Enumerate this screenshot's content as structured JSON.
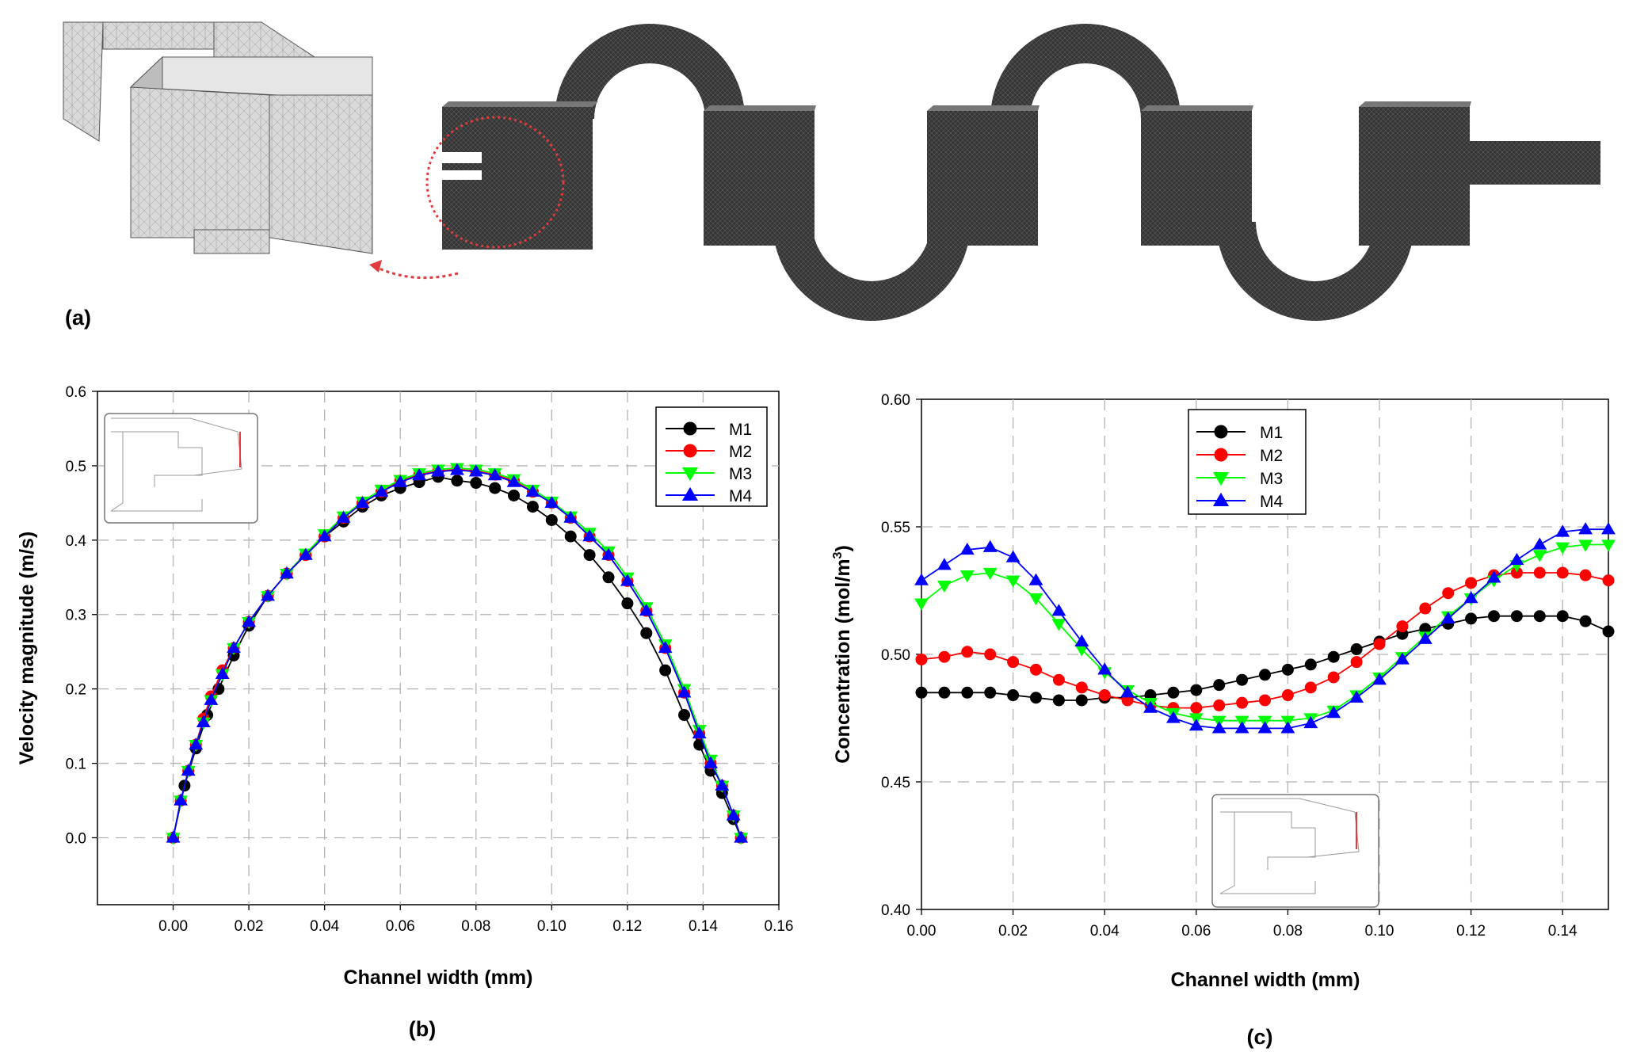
{
  "panels": {
    "a": "(a)",
    "b": "(b)",
    "c": "(c)"
  },
  "colors": {
    "M1": "#000000",
    "M2": "#ff0000",
    "M3": "#00ff00",
    "M4": "#0000ff",
    "grid": "#b4b4b4",
    "mesh_dark": "#3a3a3a",
    "mesh_light": "#d4d4d4",
    "highlight": "#e23b3b"
  },
  "chart_data": [
    {
      "id": "b",
      "type": "line",
      "xlabel": "Channel width (mm)",
      "ylabel": "Velocity magnitude (m/s)",
      "xlim": [
        -0.02,
        0.16
      ],
      "ylim": [
        -0.09,
        0.6
      ],
      "xticks": [
        0.0,
        0.02,
        0.04,
        0.06,
        0.08,
        0.1,
        0.12,
        0.14,
        0.16
      ],
      "xtick_labels": [
        "0.00",
        "0.02",
        "0.04",
        "0.06",
        "0.08",
        "0.10",
        "0.12",
        "0.14",
        "0.16"
      ],
      "yticks": [
        0.0,
        0.1,
        0.2,
        0.3,
        0.4,
        0.5,
        0.6
      ],
      "ytick_labels": [
        "0.0",
        "0.1",
        "0.2",
        "0.3",
        "0.4",
        "0.5",
        "0.6"
      ],
      "grid": true,
      "legend_position": "top-right",
      "series": [
        {
          "name": "M1",
          "marker": "circle",
          "x": [
            0.0,
            0.003,
            0.006,
            0.009,
            0.012,
            0.016,
            0.02,
            0.025,
            0.03,
            0.035,
            0.04,
            0.045,
            0.05,
            0.055,
            0.06,
            0.065,
            0.07,
            0.075,
            0.08,
            0.085,
            0.09,
            0.095,
            0.1,
            0.105,
            0.11,
            0.115,
            0.12,
            0.125,
            0.13,
            0.135,
            0.139,
            0.142,
            0.145,
            0.148,
            0.15
          ],
          "y": [
            0.0,
            0.07,
            0.12,
            0.165,
            0.2,
            0.245,
            0.285,
            0.325,
            0.355,
            0.38,
            0.405,
            0.425,
            0.445,
            0.46,
            0.47,
            0.478,
            0.485,
            0.48,
            0.477,
            0.47,
            0.46,
            0.445,
            0.427,
            0.405,
            0.38,
            0.35,
            0.315,
            0.275,
            0.225,
            0.165,
            0.125,
            0.09,
            0.06,
            0.025,
            0.0
          ]
        },
        {
          "name": "M2",
          "marker": "circle",
          "x": [
            0.0,
            0.002,
            0.004,
            0.006,
            0.008,
            0.01,
            0.013,
            0.016,
            0.02,
            0.025,
            0.03,
            0.035,
            0.04,
            0.045,
            0.05,
            0.055,
            0.06,
            0.065,
            0.07,
            0.075,
            0.08,
            0.085,
            0.09,
            0.095,
            0.1,
            0.105,
            0.11,
            0.115,
            0.12,
            0.125,
            0.13,
            0.135,
            0.139,
            0.142,
            0.145,
            0.148,
            0.15
          ],
          "y": [
            0.0,
            0.05,
            0.09,
            0.125,
            0.16,
            0.19,
            0.225,
            0.255,
            0.29,
            0.325,
            0.355,
            0.38,
            0.405,
            0.43,
            0.45,
            0.465,
            0.48,
            0.488,
            0.493,
            0.495,
            0.493,
            0.488,
            0.48,
            0.465,
            0.45,
            0.43,
            0.405,
            0.38,
            0.345,
            0.305,
            0.255,
            0.195,
            0.14,
            0.1,
            0.07,
            0.03,
            0.0
          ]
        },
        {
          "name": "M3",
          "marker": "triangle-down",
          "x": [
            0.0,
            0.002,
            0.004,
            0.006,
            0.008,
            0.01,
            0.013,
            0.016,
            0.02,
            0.025,
            0.03,
            0.035,
            0.04,
            0.045,
            0.05,
            0.055,
            0.06,
            0.065,
            0.07,
            0.075,
            0.08,
            0.085,
            0.09,
            0.095,
            0.1,
            0.105,
            0.11,
            0.115,
            0.12,
            0.125,
            0.13,
            0.135,
            0.139,
            0.142,
            0.145,
            0.148,
            0.15
          ],
          "y": [
            0.0,
            0.05,
            0.09,
            0.125,
            0.155,
            0.185,
            0.22,
            0.255,
            0.29,
            0.325,
            0.355,
            0.382,
            0.408,
            0.432,
            0.452,
            0.468,
            0.481,
            0.49,
            0.495,
            0.497,
            0.495,
            0.49,
            0.482,
            0.468,
            0.452,
            0.432,
            0.41,
            0.385,
            0.35,
            0.31,
            0.26,
            0.2,
            0.145,
            0.105,
            0.07,
            0.03,
            0.0
          ]
        },
        {
          "name": "M4",
          "marker": "triangle-up",
          "x": [
            0.0,
            0.002,
            0.004,
            0.006,
            0.008,
            0.01,
            0.013,
            0.016,
            0.02,
            0.025,
            0.03,
            0.035,
            0.04,
            0.045,
            0.05,
            0.055,
            0.06,
            0.065,
            0.07,
            0.075,
            0.08,
            0.085,
            0.09,
            0.095,
            0.1,
            0.105,
            0.11,
            0.115,
            0.12,
            0.125,
            0.13,
            0.135,
            0.139,
            0.142,
            0.145,
            0.148,
            0.15
          ],
          "y": [
            0.0,
            0.05,
            0.09,
            0.125,
            0.155,
            0.185,
            0.22,
            0.255,
            0.29,
            0.325,
            0.355,
            0.38,
            0.405,
            0.43,
            0.45,
            0.465,
            0.478,
            0.487,
            0.492,
            0.494,
            0.492,
            0.487,
            0.478,
            0.465,
            0.45,
            0.43,
            0.405,
            0.38,
            0.345,
            0.305,
            0.255,
            0.195,
            0.14,
            0.1,
            0.07,
            0.03,
            0.0
          ]
        }
      ]
    },
    {
      "id": "c",
      "type": "line",
      "xlabel": "Channel width (mm)",
      "ylabel": "Concentration (mol/m",
      "ylabel_sup": "3",
      "ylabel_end": ")",
      "xlim": [
        0.0,
        0.15
      ],
      "ylim": [
        0.4,
        0.6
      ],
      "xticks": [
        0.0,
        0.02,
        0.04,
        0.06,
        0.08,
        0.1,
        0.12,
        0.14
      ],
      "xtick_labels": [
        "0.00",
        "0.02",
        "0.04",
        "0.06",
        "0.08",
        "0.10",
        "0.12",
        "0.14"
      ],
      "yticks": [
        0.4,
        0.45,
        0.5,
        0.55,
        0.6
      ],
      "ytick_labels": [
        "0.40",
        "0.45",
        "0.50",
        "0.55",
        "0.60"
      ],
      "grid": true,
      "legend_position": "top-center",
      "series": [
        {
          "name": "M1",
          "marker": "circle",
          "x": [
            0.0,
            0.005,
            0.01,
            0.015,
            0.02,
            0.025,
            0.03,
            0.035,
            0.04,
            0.045,
            0.05,
            0.055,
            0.06,
            0.065,
            0.07,
            0.075,
            0.08,
            0.085,
            0.09,
            0.095,
            0.1,
            0.105,
            0.11,
            0.115,
            0.12,
            0.125,
            0.13,
            0.135,
            0.14,
            0.145,
            0.15
          ],
          "y": [
            0.485,
            0.485,
            0.485,
            0.485,
            0.484,
            0.483,
            0.482,
            0.482,
            0.483,
            0.483,
            0.484,
            0.485,
            0.486,
            0.488,
            0.49,
            0.492,
            0.494,
            0.496,
            0.499,
            0.502,
            0.505,
            0.508,
            0.51,
            0.512,
            0.514,
            0.515,
            0.515,
            0.515,
            0.515,
            0.513,
            0.509
          ]
        },
        {
          "name": "M2",
          "marker": "circle",
          "x": [
            0.0,
            0.005,
            0.01,
            0.015,
            0.02,
            0.025,
            0.03,
            0.035,
            0.04,
            0.045,
            0.05,
            0.055,
            0.06,
            0.065,
            0.07,
            0.075,
            0.08,
            0.085,
            0.09,
            0.095,
            0.1,
            0.105,
            0.11,
            0.115,
            0.12,
            0.125,
            0.13,
            0.135,
            0.14,
            0.145,
            0.15
          ],
          "y": [
            0.498,
            0.499,
            0.501,
            0.5,
            0.497,
            0.494,
            0.49,
            0.487,
            0.484,
            0.482,
            0.48,
            0.479,
            0.479,
            0.48,
            0.481,
            0.482,
            0.484,
            0.487,
            0.491,
            0.497,
            0.504,
            0.511,
            0.518,
            0.524,
            0.528,
            0.531,
            0.532,
            0.532,
            0.532,
            0.531,
            0.529
          ]
        },
        {
          "name": "M3",
          "marker": "triangle-down",
          "x": [
            0.0,
            0.005,
            0.01,
            0.015,
            0.02,
            0.025,
            0.03,
            0.035,
            0.04,
            0.045,
            0.05,
            0.055,
            0.06,
            0.065,
            0.07,
            0.075,
            0.08,
            0.085,
            0.09,
            0.095,
            0.1,
            0.105,
            0.11,
            0.115,
            0.12,
            0.125,
            0.13,
            0.135,
            0.14,
            0.145,
            0.15
          ],
          "y": [
            0.52,
            0.527,
            0.531,
            0.532,
            0.529,
            0.522,
            0.512,
            0.502,
            0.493,
            0.486,
            0.481,
            0.477,
            0.475,
            0.474,
            0.474,
            0.474,
            0.474,
            0.475,
            0.478,
            0.484,
            0.491,
            0.499,
            0.507,
            0.515,
            0.522,
            0.529,
            0.535,
            0.539,
            0.542,
            0.543,
            0.543
          ]
        },
        {
          "name": "M4",
          "marker": "triangle-up",
          "x": [
            0.0,
            0.005,
            0.01,
            0.015,
            0.02,
            0.025,
            0.03,
            0.035,
            0.04,
            0.045,
            0.05,
            0.055,
            0.06,
            0.065,
            0.07,
            0.075,
            0.08,
            0.085,
            0.09,
            0.095,
            0.1,
            0.105,
            0.11,
            0.115,
            0.12,
            0.125,
            0.13,
            0.135,
            0.14,
            0.145,
            0.15
          ],
          "y": [
            0.529,
            0.535,
            0.541,
            0.542,
            0.538,
            0.529,
            0.517,
            0.505,
            0.494,
            0.485,
            0.479,
            0.475,
            0.472,
            0.471,
            0.471,
            0.471,
            0.471,
            0.473,
            0.477,
            0.483,
            0.49,
            0.498,
            0.506,
            0.514,
            0.522,
            0.53,
            0.537,
            0.543,
            0.548,
            0.549,
            0.549
          ]
        }
      ]
    }
  ]
}
